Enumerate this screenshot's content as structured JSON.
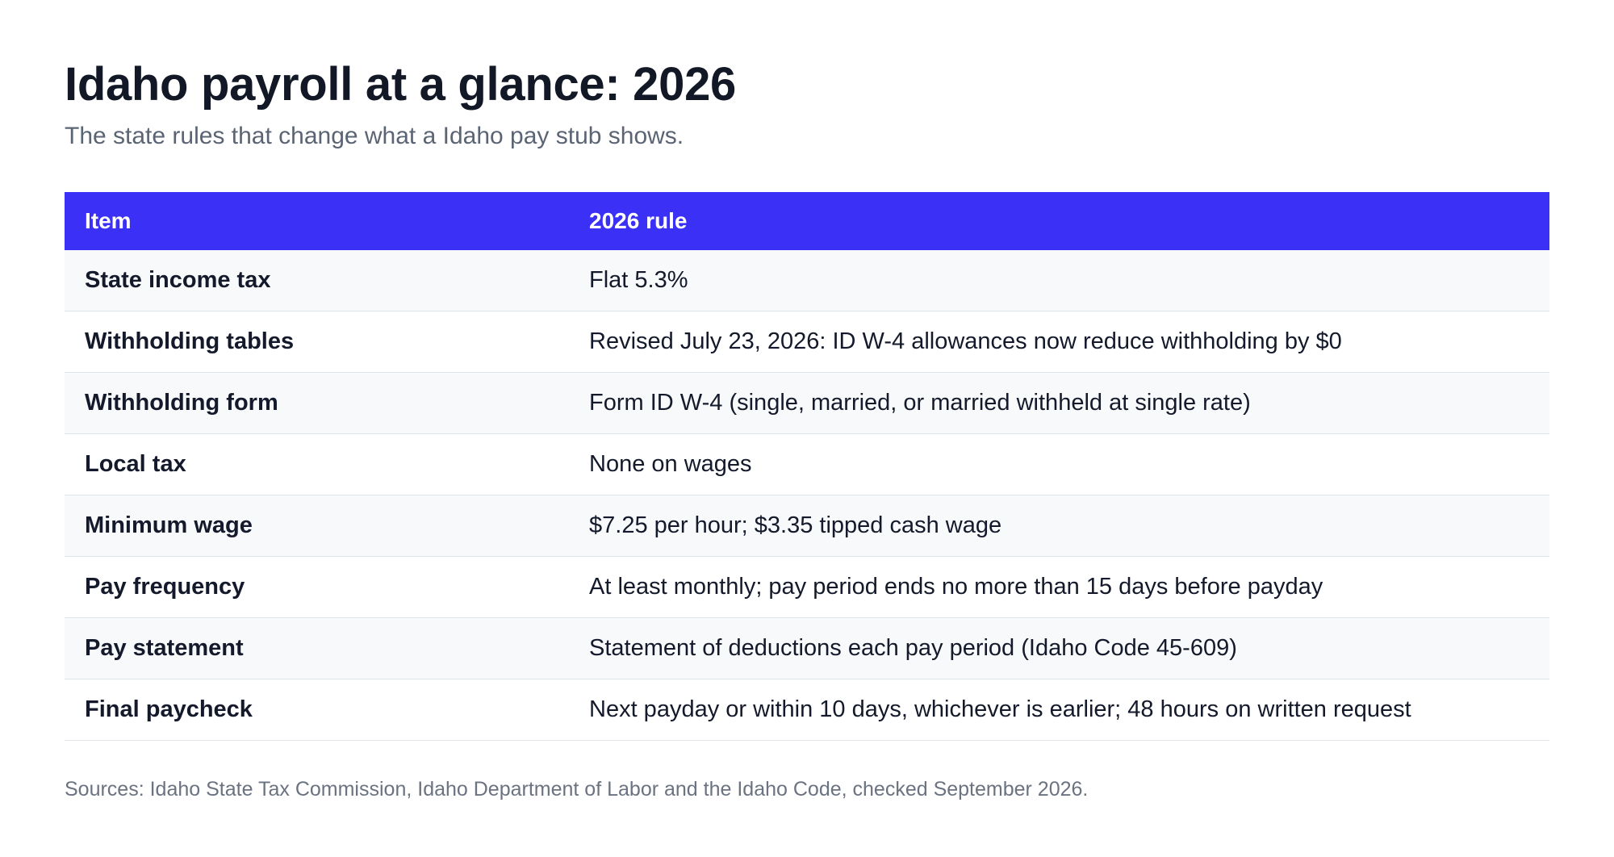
{
  "header": {
    "title": "Idaho payroll at a glance: 2026",
    "subtitle": "The state rules that change what a Idaho pay stub shows."
  },
  "table": {
    "columns": [
      "Item",
      "2026 rule"
    ],
    "rows": [
      {
        "item": "State income tax",
        "rule": "Flat 5.3%"
      },
      {
        "item": "Withholding tables",
        "rule": "Revised July 23, 2026: ID W-4 allowances now reduce withholding by $0"
      },
      {
        "item": "Withholding form",
        "rule": "Form ID W-4 (single, married, or married withheld at single rate)"
      },
      {
        "item": "Local tax",
        "rule": "None on wages"
      },
      {
        "item": "Minimum wage",
        "rule": "$7.25 per hour; $3.35 tipped cash wage"
      },
      {
        "item": "Pay frequency",
        "rule": "At least monthly; pay period ends no more than 15 days before payday"
      },
      {
        "item": "Pay statement",
        "rule": "Statement of deductions each pay period (Idaho Code 45-609)"
      },
      {
        "item": "Final paycheck",
        "rule": "Next payday or within 10 days, whichever is earlier; 48 hours on written request"
      }
    ]
  },
  "footer": {
    "sources": "Sources: Idaho State Tax Commission, Idaho Department of Labor and the Idaho Code, checked September 2026."
  },
  "colors": {
    "header_bg": "#3b30f6",
    "row_alt_bg": "#f8f9fb",
    "title_text": "#121826",
    "muted_text": "#5b6474"
  }
}
